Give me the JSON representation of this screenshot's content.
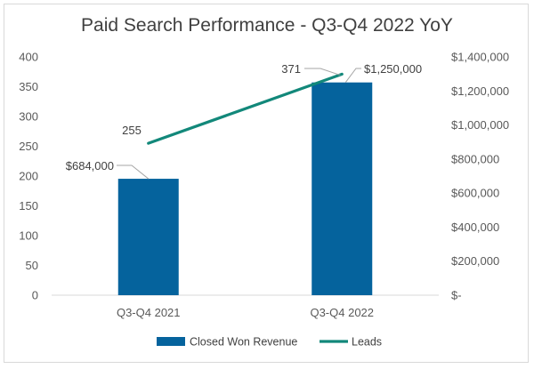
{
  "chart_data": {
    "type": "bar",
    "title": "Paid Search Performance - Q3-Q4 2022 YoY",
    "categories": [
      "Q3-Q4 2021",
      "Q3-Q4 2022"
    ],
    "series": [
      {
        "name": "Closed Won Revenue",
        "type": "bar",
        "axis": "right",
        "values": [
          684000,
          1250000
        ],
        "labels": [
          "$684,000",
          "$1,250,000"
        ],
        "color": "#05639d"
      },
      {
        "name": "Leads",
        "type": "line",
        "axis": "left",
        "values": [
          255,
          371
        ],
        "labels": [
          "255",
          "371"
        ],
        "color": "#12887a"
      }
    ],
    "y_left": {
      "ylim": [
        0,
        400
      ],
      "ticks": [
        0,
        50,
        100,
        150,
        200,
        250,
        300,
        350,
        400
      ],
      "tick_labels": [
        "0",
        "50",
        "100",
        "150",
        "200",
        "250",
        "300",
        "350",
        "400"
      ]
    },
    "y_right": {
      "ylim": [
        0,
        1400000
      ],
      "ticks": [
        0,
        200000,
        400000,
        600000,
        800000,
        1000000,
        1200000,
        1400000
      ],
      "tick_labels": [
        "$-",
        "$200,000",
        "$400,000",
        "$600,000",
        "$800,000",
        "$1,000,000",
        "$1,200,000",
        "$1,400,000"
      ]
    },
    "grid": false,
    "legend": "bottom"
  }
}
